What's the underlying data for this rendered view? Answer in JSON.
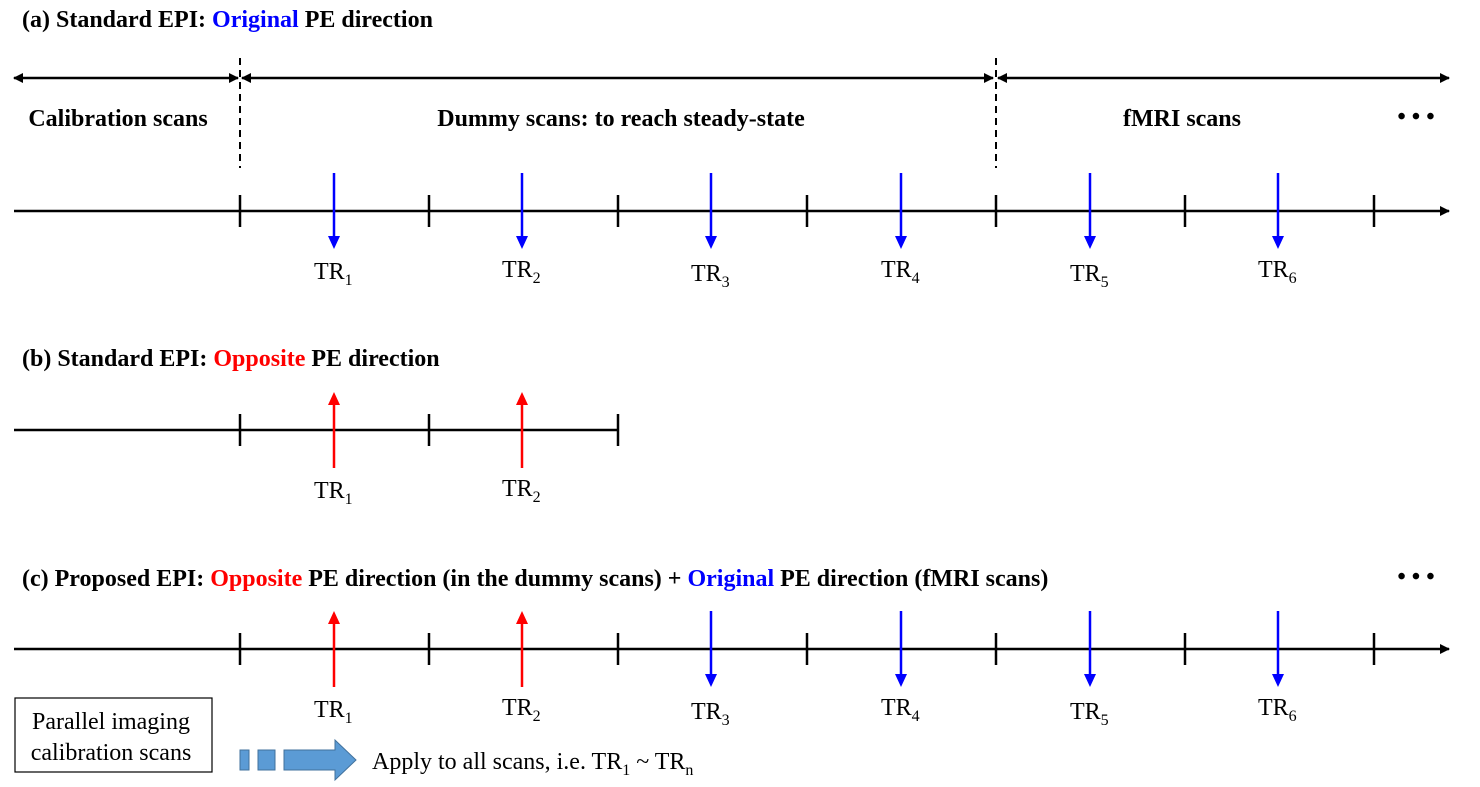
{
  "colors": {
    "original": "#0000ff",
    "opposite": "#ff0000",
    "ink": "#000000",
    "block": "#5b9bd5",
    "block_stroke": "#41719c"
  },
  "panel_a": {
    "title_prefix": "(a) Standard EPI: ",
    "title_highlight": "Original",
    "title_suffix": " PE direction",
    "segments": {
      "calibration": "Calibration scans",
      "dummy": "Dummy scans: to reach steady-state",
      "fmri": "fMRI scans"
    },
    "ellipsis": "• • •",
    "arrows": [
      {
        "label": "TR",
        "sub": "1",
        "dir": "down"
      },
      {
        "label": "TR",
        "sub": "2",
        "dir": "down"
      },
      {
        "label": "TR",
        "sub": "3",
        "dir": "down"
      },
      {
        "label": "TR",
        "sub": "4",
        "dir": "down"
      },
      {
        "label": "TR",
        "sub": "5",
        "dir": "down"
      },
      {
        "label": "TR",
        "sub": "6",
        "dir": "down"
      }
    ]
  },
  "panel_b": {
    "title_prefix": "(b) Standard EPI: ",
    "title_highlight": "Opposite",
    "title_suffix": " PE direction",
    "arrows": [
      {
        "label": "TR",
        "sub": "1",
        "dir": "up"
      },
      {
        "label": "TR",
        "sub": "2",
        "dir": "up"
      }
    ]
  },
  "panel_c": {
    "title_prefix": "(c) Proposed EPI: ",
    "title_highlight1": "Opposite",
    "title_mid": " PE direction (in the dummy scans) + ",
    "title_highlight2": "Original",
    "title_suffix": " PE direction (fMRI scans)",
    "ellipsis": "• • •",
    "arrows": [
      {
        "label": "TR",
        "sub": "1",
        "dir": "up"
      },
      {
        "label": "TR",
        "sub": "2",
        "dir": "up"
      },
      {
        "label": "TR",
        "sub": "3",
        "dir": "down"
      },
      {
        "label": "TR",
        "sub": "4",
        "dir": "down"
      },
      {
        "label": "TR",
        "sub": "5",
        "dir": "down"
      },
      {
        "label": "TR",
        "sub": "6",
        "dir": "down"
      }
    ]
  },
  "legend": {
    "box_line1": "Parallel imaging",
    "box_line2": "calibration scans",
    "apply_prefix": "Apply to all scans, i.e. TR",
    "apply_sub1": "1",
    "apply_mid": " ~ TR",
    "apply_sub2": "n"
  }
}
